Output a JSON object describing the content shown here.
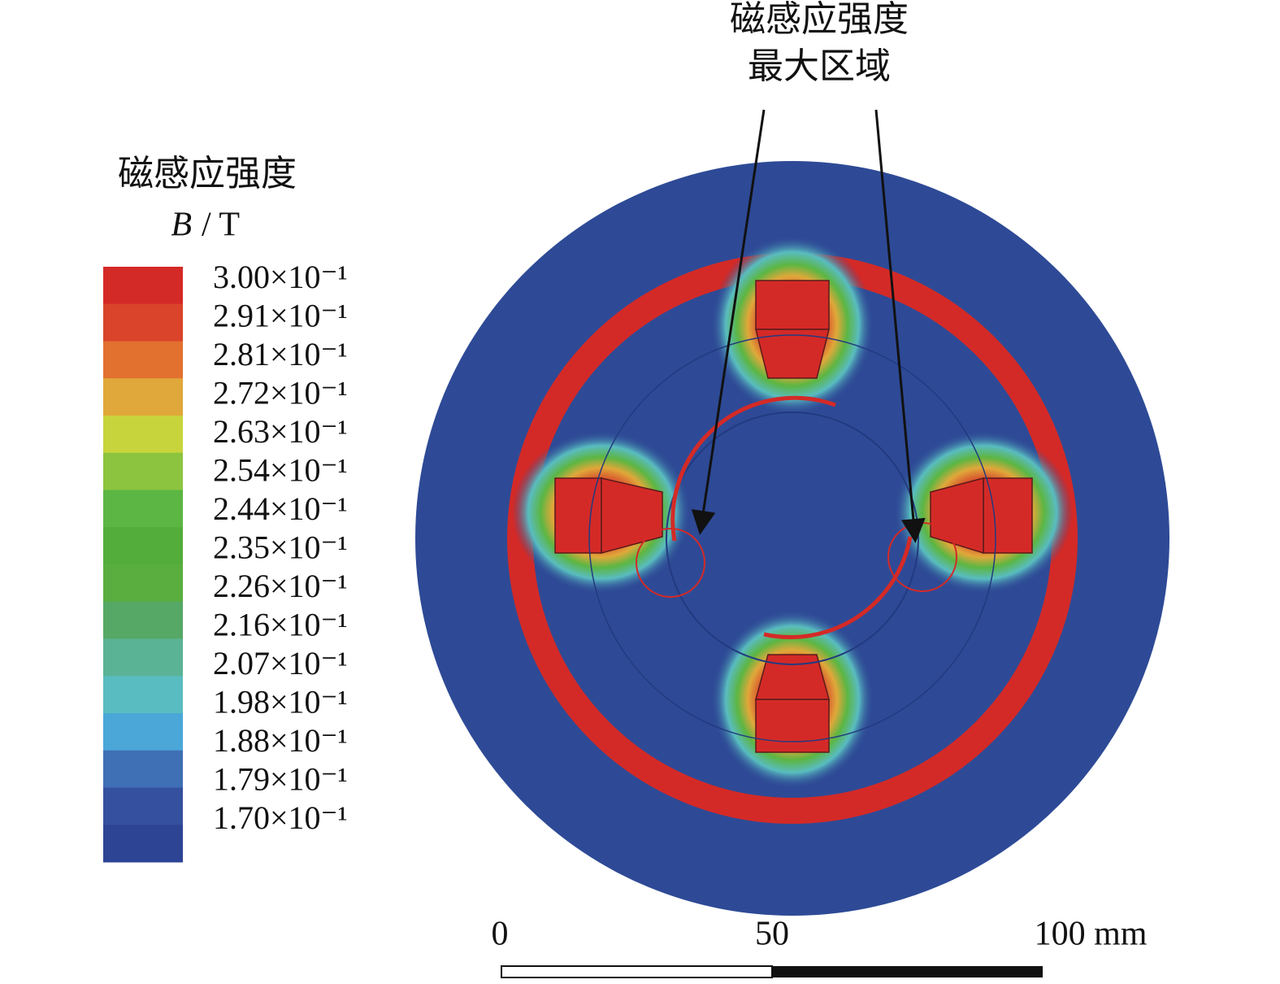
{
  "legend": {
    "title": "磁感应强度",
    "unit": {
      "symbol": "B",
      "rest": "/ T"
    },
    "labels": [
      "3.00×10⁻¹",
      "2.91×10⁻¹",
      "2.81×10⁻¹",
      "2.72×10⁻¹",
      "2.63×10⁻¹",
      "2.54×10⁻¹",
      "2.44×10⁻¹",
      "2.35×10⁻¹",
      "2.26×10⁻¹",
      "2.16×10⁻¹",
      "2.07×10⁻¹",
      "1.98×10⁻¹",
      "1.88×10⁻¹",
      "1.79×10⁻¹",
      "1.70×10⁻¹"
    ],
    "colors": [
      "#d42a27",
      "#d9442a",
      "#e2702f",
      "#e0a83a",
      "#c8d43c",
      "#8cc43f",
      "#5cb643",
      "#52ad3a",
      "#5aae3f",
      "#55a865",
      "#5bb396",
      "#59bcc0",
      "#4aa7d8",
      "#3f6fb4",
      "#34509e",
      "#2d4494"
    ]
  },
  "annotation": {
    "lines": [
      "磁感应强度",
      "最大区域"
    ]
  },
  "scale_bar": {
    "labels": [
      "0",
      "50",
      "100 mm"
    ]
  }
}
